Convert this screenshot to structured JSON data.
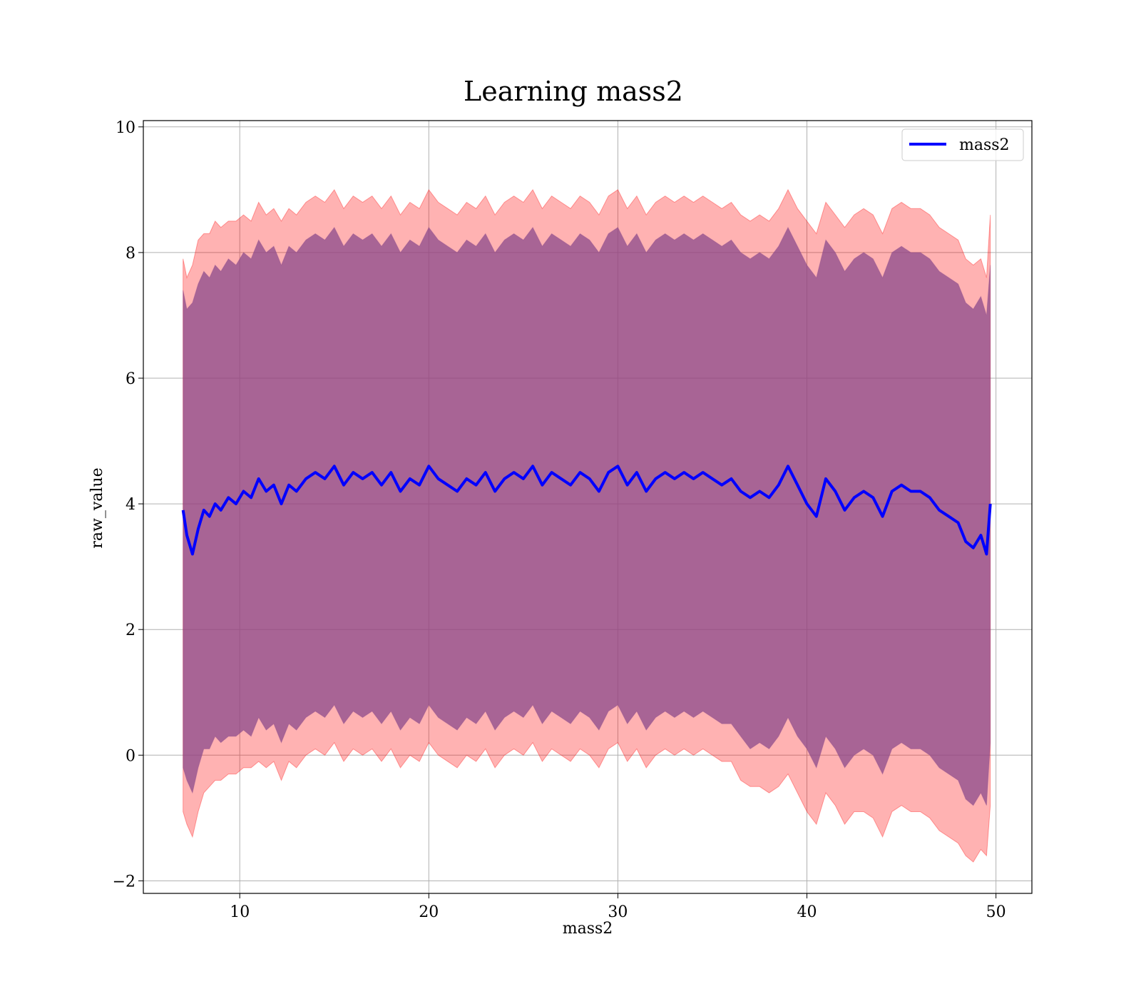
{
  "chart_data": {
    "type": "line",
    "title": "Learning mass2",
    "xlabel": "mass2",
    "ylabel": "raw_value",
    "xlim": [
      4.9,
      51.9
    ],
    "ylim": [
      -2.2,
      10.1
    ],
    "xticks": [
      10,
      20,
      30,
      40,
      50
    ],
    "yticks": [
      -2,
      0,
      2,
      4,
      6,
      8,
      10
    ],
    "xtick_labels": [
      "10",
      "20",
      "30",
      "40",
      "50"
    ],
    "ytick_labels": [
      "−2",
      "0",
      "2",
      "4",
      "6",
      "8",
      "10"
    ],
    "grid": true,
    "legend": {
      "location": "upper right",
      "entries": [
        "mass2"
      ]
    },
    "colors": {
      "line": "#0000ff",
      "outer_band": "#ff0000",
      "inner_band": "#8b4a8b",
      "grid": "#b0b0b0"
    },
    "series": [
      {
        "name": "mass2",
        "x": [
          7.0,
          7.2,
          7.5,
          7.8,
          8.1,
          8.4,
          8.7,
          9.0,
          9.4,
          9.8,
          10.2,
          10.6,
          11.0,
          11.4,
          11.8,
          12.2,
          12.6,
          13.0,
          13.5,
          14.0,
          14.5,
          15.0,
          15.5,
          16.0,
          16.5,
          17.0,
          17.5,
          18.0,
          18.5,
          19.0,
          19.5,
          20.0,
          20.5,
          21.0,
          21.5,
          22.0,
          22.5,
          23.0,
          23.5,
          24.0,
          24.5,
          25.0,
          25.5,
          26.0,
          26.5,
          27.0,
          27.5,
          28.0,
          28.5,
          29.0,
          29.5,
          30.0,
          30.5,
          31.0,
          31.5,
          32.0,
          32.5,
          33.0,
          33.5,
          34.0,
          34.5,
          35.0,
          35.5,
          36.0,
          36.5,
          37.0,
          37.5,
          38.0,
          38.5,
          39.0,
          39.5,
          40.0,
          40.5,
          41.0,
          41.5,
          42.0,
          42.5,
          43.0,
          43.5,
          44.0,
          44.5,
          45.0,
          45.5,
          46.0,
          46.5,
          47.0,
          47.5,
          48.0,
          48.4,
          48.8,
          49.2,
          49.5,
          49.7
        ],
        "y": [
          3.9,
          3.5,
          3.2,
          3.6,
          3.9,
          3.8,
          4.0,
          3.9,
          4.1,
          4.0,
          4.2,
          4.1,
          4.4,
          4.2,
          4.3,
          4.0,
          4.3,
          4.2,
          4.4,
          4.5,
          4.4,
          4.6,
          4.3,
          4.5,
          4.4,
          4.5,
          4.3,
          4.5,
          4.2,
          4.4,
          4.3,
          4.6,
          4.4,
          4.3,
          4.2,
          4.4,
          4.3,
          4.5,
          4.2,
          4.4,
          4.5,
          4.4,
          4.6,
          4.3,
          4.5,
          4.4,
          4.3,
          4.5,
          4.4,
          4.2,
          4.5,
          4.6,
          4.3,
          4.5,
          4.2,
          4.4,
          4.5,
          4.4,
          4.5,
          4.4,
          4.5,
          4.4,
          4.3,
          4.4,
          4.2,
          4.1,
          4.2,
          4.1,
          4.3,
          4.6,
          4.3,
          4.0,
          3.8,
          4.4,
          4.2,
          3.9,
          4.1,
          4.2,
          4.1,
          3.8,
          4.2,
          4.3,
          4.2,
          4.2,
          4.1,
          3.9,
          3.8,
          3.7,
          3.4,
          3.3,
          3.5,
          3.2,
          4.0
        ]
      }
    ],
    "bands": [
      {
        "name": "outer",
        "lower": [
          -0.9,
          -1.1,
          -1.3,
          -0.9,
          -0.6,
          -0.5,
          -0.4,
          -0.4,
          -0.3,
          -0.3,
          -0.2,
          -0.2,
          -0.1,
          -0.2,
          -0.1,
          -0.4,
          -0.1,
          -0.2,
          0.0,
          0.1,
          0.0,
          0.2,
          -0.1,
          0.1,
          0.0,
          0.1,
          -0.1,
          0.1,
          -0.2,
          0.0,
          -0.1,
          0.2,
          0.0,
          -0.1,
          -0.2,
          0.0,
          -0.1,
          0.1,
          -0.2,
          0.0,
          0.1,
          0.0,
          0.2,
          -0.1,
          0.1,
          0.0,
          -0.1,
          0.1,
          0.0,
          -0.2,
          0.1,
          0.2,
          -0.1,
          0.1,
          -0.2,
          0.0,
          0.1,
          0.0,
          0.1,
          0.0,
          0.1,
          0.0,
          -0.1,
          -0.1,
          -0.4,
          -0.5,
          -0.5,
          -0.6,
          -0.5,
          -0.3,
          -0.6,
          -0.9,
          -1.1,
          -0.6,
          -0.8,
          -1.1,
          -0.9,
          -0.9,
          -1.0,
          -1.3,
          -0.9,
          -0.8,
          -0.9,
          -0.9,
          -1.0,
          -1.2,
          -1.3,
          -1.4,
          -1.6,
          -1.7,
          -1.5,
          -1.6,
          -0.8
        ],
        "upper": [
          7.9,
          7.6,
          7.8,
          8.2,
          8.3,
          8.3,
          8.5,
          8.4,
          8.5,
          8.5,
          8.6,
          8.5,
          8.8,
          8.6,
          8.7,
          8.5,
          8.7,
          8.6,
          8.8,
          8.9,
          8.8,
          9.0,
          8.7,
          8.9,
          8.8,
          8.9,
          8.7,
          8.9,
          8.6,
          8.8,
          8.7,
          9.0,
          8.8,
          8.7,
          8.6,
          8.8,
          8.7,
          8.9,
          8.6,
          8.8,
          8.9,
          8.8,
          9.0,
          8.7,
          8.9,
          8.8,
          8.7,
          8.9,
          8.8,
          8.6,
          8.9,
          9.0,
          8.7,
          8.9,
          8.6,
          8.8,
          8.9,
          8.8,
          8.9,
          8.8,
          8.9,
          8.8,
          8.7,
          8.8,
          8.6,
          8.5,
          8.6,
          8.5,
          8.7,
          9.0,
          8.7,
          8.5,
          8.3,
          8.8,
          8.6,
          8.4,
          8.6,
          8.7,
          8.6,
          8.3,
          8.7,
          8.8,
          8.7,
          8.7,
          8.6,
          8.4,
          8.3,
          8.2,
          7.9,
          7.8,
          7.9,
          7.6,
          8.6
        ]
      },
      {
        "name": "inner",
        "lower": [
          -0.2,
          -0.4,
          -0.6,
          -0.2,
          0.1,
          0.1,
          0.3,
          0.2,
          0.3,
          0.3,
          0.4,
          0.3,
          0.6,
          0.4,
          0.5,
          0.2,
          0.5,
          0.4,
          0.6,
          0.7,
          0.6,
          0.8,
          0.5,
          0.7,
          0.6,
          0.7,
          0.5,
          0.7,
          0.4,
          0.6,
          0.5,
          0.8,
          0.6,
          0.5,
          0.4,
          0.6,
          0.5,
          0.7,
          0.4,
          0.6,
          0.7,
          0.6,
          0.8,
          0.5,
          0.7,
          0.6,
          0.5,
          0.7,
          0.6,
          0.4,
          0.7,
          0.8,
          0.5,
          0.7,
          0.4,
          0.6,
          0.7,
          0.6,
          0.7,
          0.6,
          0.7,
          0.6,
          0.5,
          0.5,
          0.3,
          0.1,
          0.2,
          0.1,
          0.3,
          0.6,
          0.3,
          0.1,
          -0.2,
          0.3,
          0.1,
          -0.2,
          0.0,
          0.1,
          0.0,
          -0.3,
          0.1,
          0.2,
          0.1,
          0.1,
          0.0,
          -0.2,
          -0.3,
          -0.4,
          -0.7,
          -0.8,
          -0.6,
          -0.8,
          0.2
        ],
        "upper": [
          7.4,
          7.1,
          7.2,
          7.5,
          7.7,
          7.6,
          7.8,
          7.7,
          7.9,
          7.8,
          8.0,
          7.9,
          8.2,
          8.0,
          8.1,
          7.8,
          8.1,
          8.0,
          8.2,
          8.3,
          8.2,
          8.4,
          8.1,
          8.3,
          8.2,
          8.3,
          8.1,
          8.3,
          8.0,
          8.2,
          8.1,
          8.4,
          8.2,
          8.1,
          8.0,
          8.2,
          8.1,
          8.3,
          8.0,
          8.2,
          8.3,
          8.2,
          8.4,
          8.1,
          8.3,
          8.2,
          8.1,
          8.3,
          8.2,
          8.0,
          8.3,
          8.4,
          8.1,
          8.3,
          8.0,
          8.2,
          8.3,
          8.2,
          8.3,
          8.2,
          8.3,
          8.2,
          8.1,
          8.2,
          8.0,
          7.9,
          8.0,
          7.9,
          8.1,
          8.4,
          8.1,
          7.8,
          7.6,
          8.2,
          8.0,
          7.7,
          7.9,
          8.0,
          7.9,
          7.6,
          8.0,
          8.1,
          8.0,
          8.0,
          7.9,
          7.7,
          7.6,
          7.5,
          7.2,
          7.1,
          7.3,
          7.0,
          7.8
        ]
      }
    ]
  }
}
